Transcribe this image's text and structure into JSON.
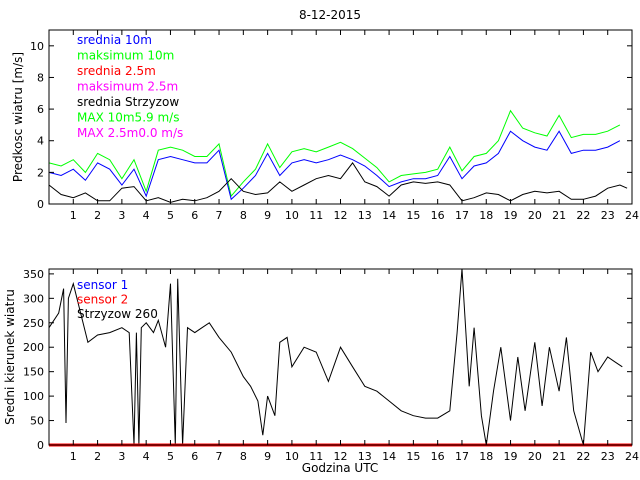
{
  "chart_data": [
    {
      "type": "line",
      "title": "8-12-2015",
      "ylabel": "Predkosc wiatru [m/s]",
      "xlabel": "",
      "xlim": [
        0,
        24
      ],
      "ylim": [
        0,
        11
      ],
      "xticks": [
        1,
        2,
        3,
        4,
        5,
        6,
        7,
        8,
        9,
        10,
        11,
        12,
        13,
        14,
        15,
        16,
        17,
        18,
        19,
        20,
        21,
        22,
        23,
        24
      ],
      "yticks": [
        0,
        2,
        4,
        6,
        8,
        10
      ],
      "legend": [
        {
          "label": "srednia 10m",
          "color": "#0000ff"
        },
        {
          "label": "maksimum 10m",
          "color": "#00ff00"
        },
        {
          "label": "srednia 2.5m",
          "color": "#ff0000"
        },
        {
          "label": "maksimum 2.5m",
          "color": "#ff00ff"
        },
        {
          "label": "srednia Strzyzow",
          "color": "#000000"
        },
        {
          "label": "MAX 10m5.9 m/s",
          "color": "#00ff00"
        },
        {
          "label": "MAX 2.5m0.0 m/s",
          "color": "#ff00ff"
        }
      ],
      "series": [
        {
          "name": "srednia 10m",
          "color": "#0000ff",
          "x": [
            0,
            0.5,
            1,
            1.5,
            2,
            2.5,
            3,
            3.5,
            4,
            4.5,
            5,
            5.5,
            6,
            6.5,
            7,
            7.5,
            8,
            8.5,
            9,
            9.5,
            10,
            10.5,
            11,
            11.5,
            12,
            12.5,
            13,
            13.5,
            14,
            14.5,
            15,
            15.5,
            16,
            16.5,
            17,
            17.5,
            18,
            18.5,
            19,
            19.5,
            20,
            20.5,
            21,
            21.5,
            22,
            22.5,
            23,
            23.5
          ],
          "y": [
            2.0,
            1.8,
            2.2,
            1.5,
            2.6,
            2.2,
            1.2,
            2.2,
            0.5,
            2.8,
            3.0,
            2.8,
            2.6,
            2.6,
            3.4,
            0.3,
            1.0,
            1.8,
            3.2,
            1.8,
            2.6,
            2.8,
            2.6,
            2.8,
            3.1,
            2.8,
            2.4,
            1.8,
            1.1,
            1.4,
            1.6,
            1.6,
            1.8,
            3.0,
            1.6,
            2.4,
            2.6,
            3.2,
            4.6,
            4.0,
            3.6,
            3.4,
            4.6,
            3.2,
            3.4,
            3.4,
            3.6,
            4.0
          ]
        },
        {
          "name": "maksimum 10m",
          "color": "#00ff00",
          "x": [
            0,
            0.5,
            1,
            1.5,
            2,
            2.5,
            3,
            3.5,
            4,
            4.5,
            5,
            5.5,
            6,
            6.5,
            7,
            7.5,
            8,
            8.5,
            9,
            9.5,
            10,
            10.5,
            11,
            11.5,
            12,
            12.5,
            13,
            13.5,
            14,
            14.5,
            15,
            15.5,
            16,
            16.5,
            17,
            17.5,
            18,
            18.5,
            19,
            19.5,
            20,
            20.5,
            21,
            21.5,
            22,
            22.5,
            23,
            23.5
          ],
          "y": [
            2.6,
            2.4,
            2.8,
            2.0,
            3.2,
            2.8,
            1.6,
            2.8,
            0.8,
            3.4,
            3.6,
            3.4,
            3.0,
            3.0,
            3.8,
            0.5,
            1.4,
            2.2,
            3.8,
            2.3,
            3.3,
            3.5,
            3.3,
            3.6,
            3.9,
            3.5,
            2.9,
            2.3,
            1.4,
            1.8,
            1.9,
            2.0,
            2.2,
            3.6,
            2.1,
            3.0,
            3.2,
            4.0,
            5.9,
            4.8,
            4.5,
            4.3,
            5.6,
            4.2,
            4.4,
            4.4,
            4.6,
            5.0
          ]
        },
        {
          "name": "srednia 2.5m",
          "color": "#ff0000",
          "x": [
            0,
            24
          ],
          "y": [
            0,
            0
          ]
        },
        {
          "name": "maksimum 2.5m",
          "color": "#ff00ff",
          "x": [
            0,
            24
          ],
          "y": [
            0,
            0
          ]
        },
        {
          "name": "srednia Strzyzow",
          "color": "#000000",
          "x": [
            0,
            0.5,
            1,
            1.5,
            2,
            2.5,
            3,
            3.5,
            4,
            4.5,
            5,
            5.5,
            6,
            6.5,
            7,
            7.5,
            8,
            8.5,
            9,
            9.5,
            10,
            10.5,
            11,
            11.5,
            12,
            12.5,
            13,
            13.5,
            14,
            14.5,
            15,
            15.5,
            16,
            16.5,
            17,
            17.5,
            18,
            18.5,
            19,
            19.5,
            20,
            20.5,
            21,
            21.5,
            22,
            22.5,
            23,
            23.5,
            23.8
          ],
          "y": [
            1.2,
            0.6,
            0.4,
            0.7,
            0.2,
            0.2,
            1.0,
            1.1,
            0.2,
            0.4,
            0.1,
            0.3,
            0.2,
            0.4,
            0.8,
            1.6,
            0.8,
            0.6,
            0.7,
            1.4,
            0.8,
            1.2,
            1.6,
            1.8,
            1.6,
            2.6,
            1.4,
            1.1,
            0.5,
            1.2,
            1.4,
            1.3,
            1.4,
            1.2,
            0.2,
            0.4,
            0.7,
            0.6,
            0.2,
            0.6,
            0.8,
            0.7,
            0.8,
            0.3,
            0.3,
            0.5,
            1.0,
            1.2,
            1.0
          ]
        }
      ]
    },
    {
      "type": "line",
      "title": "",
      "ylabel": "Sredni kierunek wiatru",
      "xlabel": "Godzina UTC",
      "xlim": [
        0,
        24
      ],
      "ylim": [
        0,
        360
      ],
      "xticks": [
        1,
        2,
        3,
        4,
        5,
        6,
        7,
        8,
        9,
        10,
        11,
        12,
        13,
        14,
        15,
        16,
        17,
        18,
        19,
        20,
        21,
        22,
        23,
        24
      ],
      "yticks": [
        0,
        50,
        100,
        150,
        200,
        250,
        300,
        350
      ],
      "legend": [
        {
          "label": "sensor 1",
          "color": "#0000ff"
        },
        {
          "label": "sensor 2",
          "color": "#ff0000"
        },
        {
          "label": "Strzyzow 260",
          "color": "#000000"
        }
      ],
      "series": [
        {
          "name": "sensor 1",
          "color": "#0000ff",
          "x": [
            0,
            24
          ],
          "y": [
            0,
            0
          ]
        },
        {
          "name": "sensor 2",
          "color": "#ff0000",
          "x": [
            0,
            24
          ],
          "y": [
            0,
            0
          ]
        },
        {
          "name": "Strzyzow",
          "color": "#000000",
          "x": [
            0,
            0.4,
            0.6,
            0.7,
            0.8,
            1,
            1.3,
            1.6,
            2,
            2.5,
            3,
            3.3,
            3.5,
            3.6,
            3.7,
            3.8,
            4,
            4.3,
            4.5,
            4.8,
            5,
            5.2,
            5.3,
            5.5,
            5.7,
            6,
            6.3,
            6.6,
            7,
            7.5,
            8,
            8.3,
            8.6,
            8.8,
            9,
            9.3,
            9.5,
            9.8,
            10,
            10.5,
            11,
            11.5,
            12,
            12.5,
            13,
            13.5,
            14,
            14.5,
            15,
            15.5,
            16,
            16.5,
            16.8,
            17,
            17.3,
            17.5,
            17.8,
            18,
            18.3,
            18.6,
            19,
            19.3,
            19.6,
            20,
            20.3,
            20.6,
            21,
            21.3,
            21.6,
            22,
            22.3,
            22.6,
            23,
            23.3,
            23.6
          ],
          "y": [
            240,
            270,
            320,
            45,
            300,
            330,
            270,
            210,
            225,
            230,
            240,
            230,
            0,
            230,
            0,
            240,
            250,
            230,
            255,
            200,
            330,
            0,
            340,
            0,
            240,
            230,
            240,
            250,
            220,
            190,
            140,
            120,
            90,
            20,
            100,
            60,
            210,
            220,
            160,
            200,
            190,
            130,
            200,
            160,
            120,
            110,
            90,
            70,
            60,
            55,
            55,
            70,
            230,
            360,
            120,
            240,
            60,
            0,
            110,
            200,
            50,
            180,
            70,
            210,
            80,
            200,
            110,
            220,
            70,
            0,
            190,
            150,
            180,
            170,
            160
          ]
        }
      ]
    }
  ]
}
